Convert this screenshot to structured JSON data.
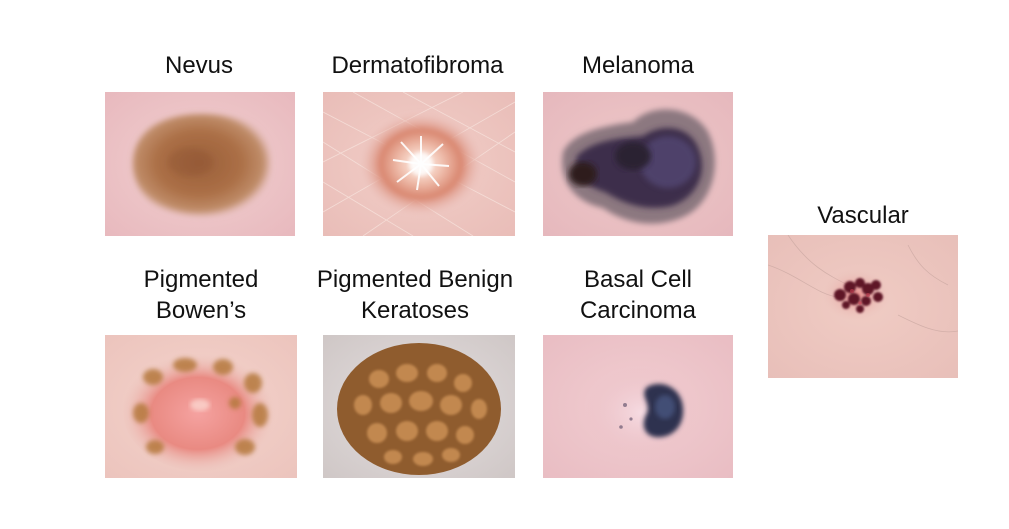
{
  "figure": {
    "panels": [
      {
        "id": "nevus",
        "label": "Nevus",
        "image": "nevus-lesion-photo"
      },
      {
        "id": "dermatofibroma",
        "label": "Dermatofibroma",
        "image": "dermatofibroma-lesion-photo"
      },
      {
        "id": "melanoma",
        "label": "Melanoma",
        "image": "melanoma-lesion-photo"
      },
      {
        "id": "bowens",
        "label": "Pigmented\nBowen’s",
        "image": "pigmented-bowens-lesion-photo"
      },
      {
        "id": "bkl",
        "label": "Pigmented Benign\nKeratoses",
        "image": "pigmented-benign-keratoses-lesion-photo"
      },
      {
        "id": "bcc",
        "label": "Basal Cell\nCarcinoma",
        "image": "basal-cell-carcinoma-lesion-photo"
      },
      {
        "id": "vascular",
        "label": "Vascular",
        "image": "vascular-lesion-photo"
      }
    ]
  }
}
